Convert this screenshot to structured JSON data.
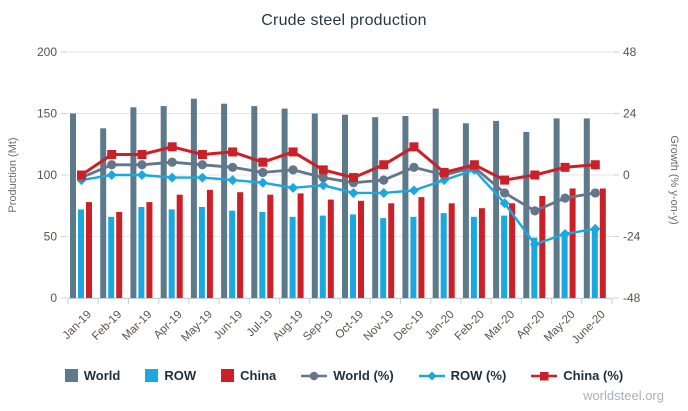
{
  "title": "Crude steel production",
  "credit": "worldsteel.org",
  "colors": {
    "world_bar": "#5d7a8b",
    "row_bar": "#1ba7e0",
    "china_bar": "#cc2029",
    "world_line": "#64778a",
    "row_line": "#1ba7e0",
    "china_line": "#cc2029",
    "gridline": "#e6e6e6",
    "axis_tick": "#d0d0d0",
    "baseline": "#bed3df",
    "ytick_label": "#5b524c",
    "xtick_label": "#5b524c",
    "axis_title": "#6d6e71",
    "title_text": "#253746",
    "legend_text": "#1e2f3c",
    "credit_text": "#a7b1ba"
  },
  "chart_data": {
    "type": "bar+line combo",
    "title": "Crude steel production",
    "categories": [
      "Jan-19",
      "Feb-19",
      "Mar-19",
      "Apr-19",
      "May-19",
      "Jun-19",
      "Jul-19",
      "Aug-19",
      "Sep-19",
      "Oct-19",
      "Nov-19",
      "Dec-19",
      "Jan-20",
      "Feb-20",
      "Mar-20",
      "Apr-20",
      "May-20",
      "June-20"
    ],
    "left_axis": {
      "title": "Production (Mt)",
      "ticks": [
        200,
        150,
        100,
        50,
        0
      ],
      "lim": [
        0,
        200
      ]
    },
    "right_axis": {
      "title": "Growth (% y-on-y)",
      "ticks": [
        48,
        24,
        0,
        -24,
        -48
      ],
      "lim": [
        -48,
        48
      ]
    },
    "grid": true,
    "legend_position": "bottom",
    "bar_series": [
      {
        "name": "World",
        "axis": "left",
        "color": "#5d7a8b",
        "values": [
          150,
          138,
          155,
          156,
          162,
          158,
          156,
          154,
          150,
          149,
          147,
          148,
          154,
          142,
          144,
          135,
          146,
          146
        ]
      },
      {
        "name": "ROW",
        "axis": "left",
        "color": "#1ba7e0",
        "values": [
          72,
          66,
          74,
          72,
          74,
          71,
          70,
          66,
          67,
          68,
          65,
          66,
          69,
          66,
          67,
          49,
          53,
          56
        ]
      },
      {
        "name": "China",
        "axis": "left",
        "color": "#cc2029",
        "values": [
          78,
          70,
          78,
          84,
          88,
          86,
          84,
          85,
          80,
          79,
          77,
          82,
          77,
          73,
          77,
          83,
          89,
          89
        ]
      }
    ],
    "line_series": [
      {
        "name": "ROW (%)",
        "axis": "right",
        "color": "#1ba7e0",
        "marker": "diamond",
        "values": [
          -2,
          0,
          0,
          -1,
          -1,
          -2,
          -3,
          -5,
          -4,
          -7,
          -7,
          -6,
          -2,
          2,
          -11,
          -27,
          -23,
          -21
        ]
      },
      {
        "name": "World (%)",
        "axis": "right",
        "color": "#64778a",
        "marker": "circle",
        "values": [
          -1,
          4,
          4,
          5,
          4,
          3,
          1,
          2,
          -1,
          -3,
          -2,
          3,
          0,
          3,
          -7,
          -14,
          -9,
          -7
        ]
      },
      {
        "name": "China (%)",
        "axis": "right",
        "color": "#cc2029",
        "marker": "square",
        "values": [
          0,
          8,
          8,
          11,
          8,
          9,
          5,
          9,
          2,
          -1,
          4,
          11,
          1,
          4,
          -2,
          0,
          3,
          4
        ]
      }
    ],
    "legend_order": [
      "World",
      "ROW",
      "China",
      "World (%)",
      "ROW (%)",
      "China (%)"
    ]
  }
}
